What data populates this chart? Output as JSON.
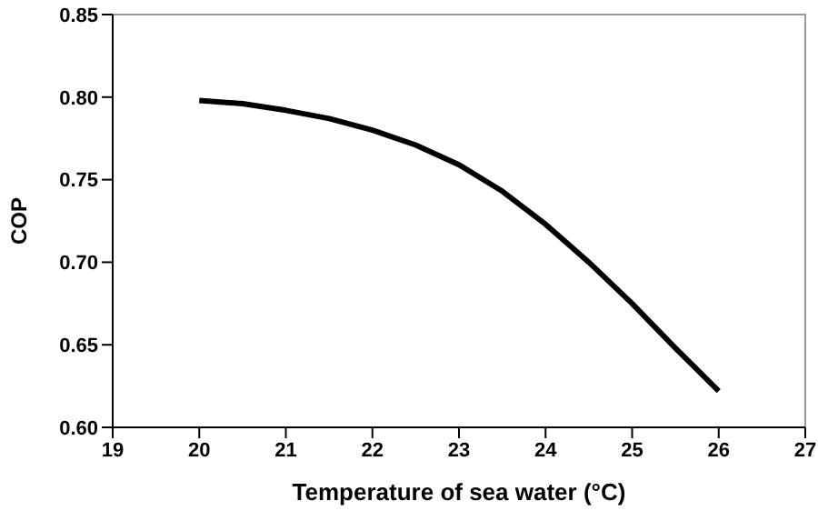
{
  "chart_data": {
    "type": "line",
    "xlabel": "Temperature of sea water (°C)",
    "ylabel": "COP",
    "x": [
      20,
      20.5,
      21,
      21.5,
      22,
      22.5,
      23,
      23.5,
      24,
      24.5,
      25,
      25.5,
      26
    ],
    "series": [
      {
        "color": "#000000",
        "values": [
          0.798,
          0.796,
          0.792,
          0.787,
          0.78,
          0.771,
          0.759,
          0.743,
          0.723,
          0.7,
          0.675,
          0.648,
          0.622
        ]
      }
    ],
    "xlim": [
      19,
      27
    ],
    "xticks": [
      19,
      20,
      21,
      22,
      23,
      24,
      25,
      26,
      27
    ],
    "ylim": [
      0.6,
      0.85
    ],
    "yticks": [
      {
        "value": 0.6,
        "label": "0.60"
      },
      {
        "value": 0.65,
        "label": "0.65"
      },
      {
        "value": 0.7,
        "label": "0.70"
      },
      {
        "value": 0.75,
        "label": "0.75"
      },
      {
        "value": 0.8,
        "label": "0.80"
      },
      {
        "value": 0.85,
        "label": "0.85"
      }
    ],
    "grid": false,
    "legend": false,
    "marker": "none",
    "line_style": "solid"
  }
}
